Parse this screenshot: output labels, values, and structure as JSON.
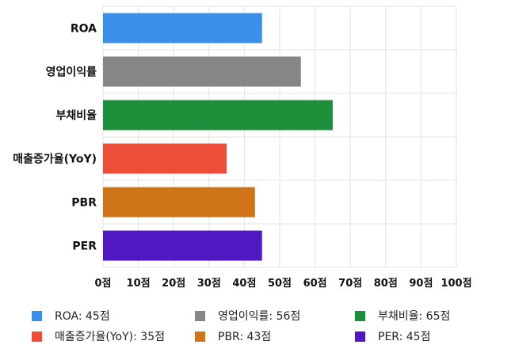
{
  "chart_data": {
    "type": "bar",
    "orientation": "horizontal",
    "categories": [
      "ROA",
      "영업이익률",
      "부채비율",
      "매출증가율(YoY)",
      "PBR",
      "PER"
    ],
    "values": [
      45,
      56,
      65,
      35,
      43,
      45
    ],
    "colors": [
      "#3b8fe8",
      "#868686",
      "#1d8f3a",
      "#ec4e3a",
      "#cf7418",
      "#5018c0"
    ],
    "xlim": [
      0,
      100
    ],
    "x_ticks": [
      "0점",
      "10점",
      "20점",
      "30점",
      "40점",
      "50점",
      "60점",
      "70점",
      "80점",
      "90점",
      "100점"
    ],
    "grid": true,
    "legend_position": "bottom",
    "legend": [
      {
        "label": "ROA: 45점",
        "color": "#3b8fe8"
      },
      {
        "label": "영업이익률: 56점",
        "color": "#868686"
      },
      {
        "label": "부채비율: 65점",
        "color": "#1d8f3a"
      },
      {
        "label": "매출증가율(YoY): 35점",
        "color": "#ec4e3a"
      },
      {
        "label": "PBR: 43점",
        "color": "#cf7418"
      },
      {
        "label": "PER: 45점",
        "color": "#5018c0"
      }
    ]
  }
}
